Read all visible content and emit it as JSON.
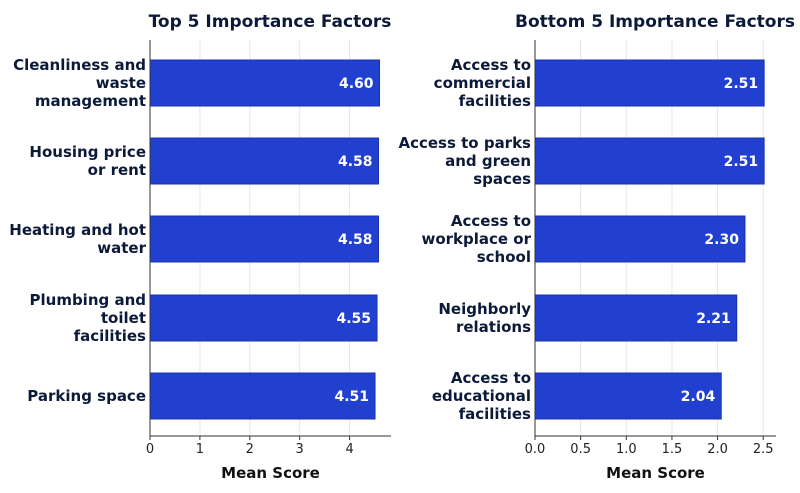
{
  "colors": {
    "bar": "#2140CF",
    "bar_edge": "#1a33a8",
    "text_dark": "#0c1a3a",
    "value_label": "#ffffff",
    "axis": "#333333",
    "grid": "#e6e6e6"
  },
  "chart_data": [
    {
      "type": "bar",
      "orientation": "horizontal",
      "title": "Top 5 Importance Factors",
      "xlabel": "Mean Score",
      "ylabel": "",
      "xlim": [
        0,
        4.83
      ],
      "xticks": [
        0,
        1,
        2,
        3,
        4
      ],
      "xtick_labels": [
        "0",
        "1",
        "2",
        "3",
        "4"
      ],
      "grid": "x",
      "categories": [
        [
          "Cleanliness and",
          "waste",
          "management"
        ],
        [
          "Housing price",
          "or rent"
        ],
        [
          "Heating and hot",
          "water"
        ],
        [
          "Plumbing and",
          "toilet",
          "facilities"
        ],
        [
          "Parking space"
        ]
      ],
      "values": [
        4.6,
        4.58,
        4.58,
        4.55,
        4.51
      ],
      "value_labels": [
        "4.60",
        "4.58",
        "4.58",
        "4.55",
        "4.51"
      ]
    },
    {
      "type": "bar",
      "orientation": "horizontal",
      "title": "Bottom 5 Importance Factors",
      "xlabel": "Mean Score",
      "ylabel": "",
      "xlim": [
        0,
        2.64
      ],
      "xticks": [
        0,
        0.5,
        1.0,
        1.5,
        2.0,
        2.5
      ],
      "xtick_labels": [
        "0.0",
        "0.5",
        "1.0",
        "1.5",
        "2.0",
        "2.5"
      ],
      "grid": "x",
      "categories": [
        [
          "Access to",
          "commercial",
          "facilities"
        ],
        [
          "Access to parks",
          "and green",
          "spaces"
        ],
        [
          "Access to",
          "workplace or",
          "school"
        ],
        [
          "Neighborly",
          "relations"
        ],
        [
          "Access to",
          "educational",
          "facilities"
        ]
      ],
      "values": [
        2.51,
        2.51,
        2.3,
        2.21,
        2.04
      ],
      "value_labels": [
        "2.51",
        "2.51",
        "2.30",
        "2.21",
        "2.04"
      ]
    }
  ]
}
